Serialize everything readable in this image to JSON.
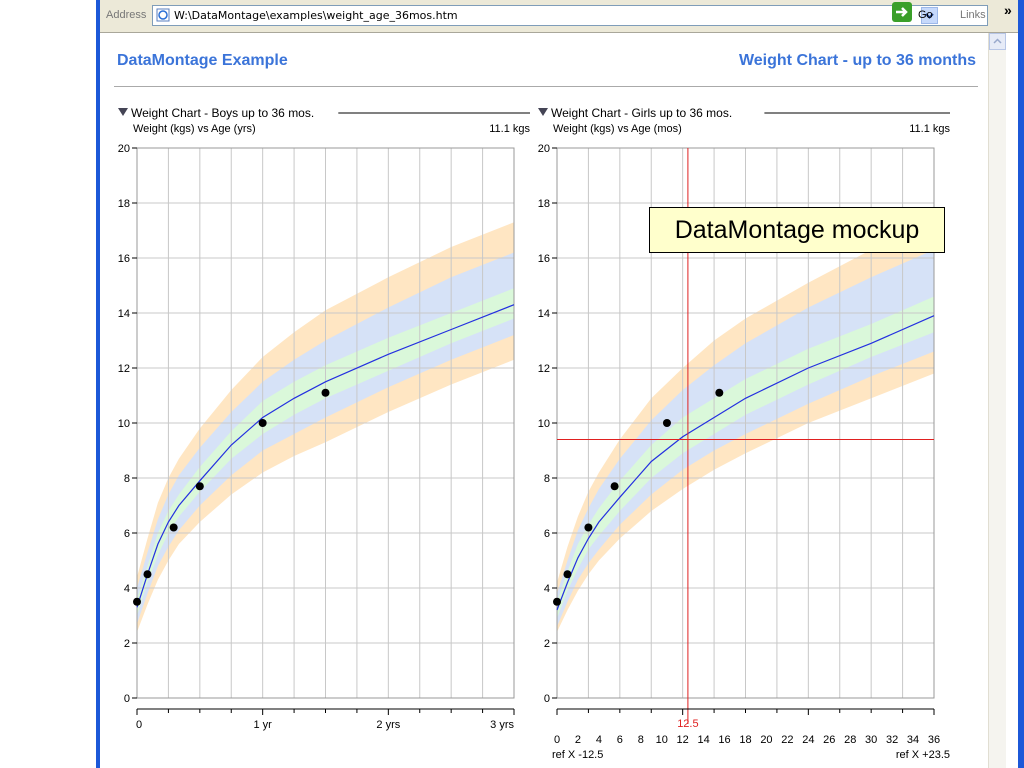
{
  "browser": {
    "address_label": "Address",
    "url": "W:\\DataMontage\\examples\\weight_age_36mos.htm",
    "go_label": "Go",
    "links_label": "Links",
    "chevron": "»"
  },
  "page": {
    "header_left": "DataMontage Example",
    "header_right": "Weight Chart - up to 36 months"
  },
  "callout": "DataMontage mockup",
  "colors": {
    "header_blue": "#3b74d9",
    "band_outer": "#ffe3bd",
    "band_mid": "#d2e1fd",
    "band_inner": "#dafbd6",
    "median_line": "#2430e0",
    "crosshair": "#e02020"
  },
  "chart_data": [
    {
      "type": "line",
      "title": "Weight Chart - Boys up to 36 mos.",
      "subtitle": "Weight (kgs) vs Age (yrs)",
      "latest_value_label": "11.1 kgs",
      "ylim": [
        0,
        20
      ],
      "y_ticks": [
        0,
        2,
        4,
        6,
        8,
        10,
        12,
        14,
        16,
        18,
        20
      ],
      "xlim": [
        0,
        36
      ],
      "x_ticks": [
        {
          "x": 0,
          "label": "0"
        },
        {
          "x": 12,
          "label": "1 yr"
        },
        {
          "x": 24,
          "label": "2 yrs"
        },
        {
          "x": 36,
          "label": "3 yrs"
        }
      ],
      "x_unit": "months",
      "grid": true,
      "points": {
        "x": [
          0,
          1,
          3.5,
          6,
          12,
          18
        ],
        "y": [
          3.5,
          4.5,
          6.2,
          7.7,
          10.0,
          11.1
        ]
      },
      "median": {
        "x": [
          0,
          1,
          2,
          3,
          4,
          6,
          9,
          12,
          15,
          18,
          24,
          30,
          36
        ],
        "y": [
          3.3,
          4.5,
          5.6,
          6.4,
          7.0,
          7.9,
          9.2,
          10.2,
          10.9,
          11.5,
          12.5,
          13.4,
          14.3
        ]
      },
      "bands": [
        {
          "lower": [
            2.4,
            3.4,
            4.3,
            5.0,
            5.6,
            6.4,
            7.4,
            8.2,
            8.8,
            9.3,
            10.4,
            11.4,
            12.3
          ],
          "upper": [
            4.4,
            5.8,
            7.1,
            8.0,
            8.7,
            9.8,
            11.2,
            12.4,
            13.3,
            14.1,
            15.3,
            16.4,
            17.3
          ]
        },
        {
          "lower": [
            2.7,
            3.8,
            4.8,
            5.5,
            6.1,
            7.0,
            8.1,
            9.0,
            9.6,
            10.2,
            11.3,
            12.3,
            13.2
          ],
          "upper": [
            4.0,
            5.3,
            6.5,
            7.4,
            8.1,
            9.1,
            10.4,
            11.5,
            12.3,
            13.0,
            14.2,
            15.3,
            16.2
          ]
        },
        {
          "lower": [
            3.0,
            4.2,
            5.2,
            6.0,
            6.6,
            7.5,
            8.7,
            9.6,
            10.3,
            10.9,
            11.9,
            12.9,
            13.8
          ],
          "upper": [
            3.6,
            4.8,
            6.0,
            6.8,
            7.4,
            8.4,
            9.7,
            10.8,
            11.5,
            12.1,
            13.1,
            14.0,
            14.9
          ]
        }
      ]
    },
    {
      "type": "line",
      "title": "Weight Chart - Girls up to 36 mos.",
      "subtitle": "Weight (kgs) vs Age (mos)",
      "latest_value_label": "11.1 kgs",
      "ylim": [
        0,
        20
      ],
      "y_ticks": [
        0,
        2,
        4,
        6,
        8,
        10,
        12,
        14,
        16,
        18,
        20
      ],
      "xlim": [
        0,
        36
      ],
      "x_ticks": [
        {
          "x": 0,
          "label": "0"
        },
        {
          "x": 2,
          "label": "2"
        },
        {
          "x": 4,
          "label": "4"
        },
        {
          "x": 6,
          "label": "6"
        },
        {
          "x": 8,
          "label": "8"
        },
        {
          "x": 10,
          "label": "10"
        },
        {
          "x": 12,
          "label": "12"
        },
        {
          "x": 14,
          "label": "14"
        },
        {
          "x": 16,
          "label": "16"
        },
        {
          "x": 18,
          "label": "18"
        },
        {
          "x": 20,
          "label": "20"
        },
        {
          "x": 22,
          "label": "22"
        },
        {
          "x": 24,
          "label": "24"
        },
        {
          "x": 26,
          "label": "26"
        },
        {
          "x": 28,
          "label": "28"
        },
        {
          "x": 30,
          "label": "30"
        },
        {
          "x": 32,
          "label": "32"
        },
        {
          "x": 34,
          "label": "34"
        },
        {
          "x": 36,
          "label": "36"
        }
      ],
      "x_unit": "months",
      "grid": true,
      "points": {
        "x": [
          0,
          1,
          3,
          5.5,
          10.5,
          15.5
        ],
        "y": [
          3.5,
          4.5,
          6.2,
          7.7,
          10.0,
          11.1
        ]
      },
      "median": {
        "x": [
          0,
          1,
          2,
          3,
          4,
          6,
          9,
          12,
          15,
          18,
          24,
          30,
          36
        ],
        "y": [
          3.2,
          4.2,
          5.1,
          5.8,
          6.4,
          7.3,
          8.6,
          9.5,
          10.2,
          10.9,
          12.0,
          12.9,
          13.9
        ]
      },
      "bands": [
        {
          "lower": [
            2.4,
            3.2,
            3.9,
            4.5,
            5.0,
            5.8,
            6.8,
            7.6,
            8.3,
            8.9,
            10.0,
            10.9,
            11.8
          ],
          "upper": [
            4.2,
            5.5,
            6.6,
            7.5,
            8.2,
            9.4,
            10.9,
            12.0,
            13.0,
            13.8,
            15.1,
            16.3,
            17.3
          ]
        },
        {
          "lower": [
            2.6,
            3.5,
            4.3,
            4.9,
            5.4,
            6.3,
            7.4,
            8.3,
            9.0,
            9.6,
            10.7,
            11.7,
            12.6
          ],
          "upper": [
            3.8,
            5.0,
            6.1,
            6.9,
            7.6,
            8.7,
            10.1,
            11.2,
            12.1,
            12.9,
            14.2,
            15.3,
            16.3
          ]
        },
        {
          "lower": [
            2.9,
            3.9,
            4.7,
            5.4,
            5.9,
            6.8,
            8.0,
            8.9,
            9.6,
            10.3,
            11.4,
            12.4,
            13.3
          ],
          "upper": [
            3.5,
            4.6,
            5.6,
            6.3,
            6.9,
            7.9,
            9.2,
            10.2,
            10.9,
            11.6,
            12.7,
            13.6,
            14.6
          ]
        }
      ],
      "crosshair": {
        "x": 12.5,
        "y": 9.4,
        "x_label": "12.5"
      },
      "ref_left": "ref X -12.5",
      "ref_right": "ref X +23.5"
    }
  ]
}
